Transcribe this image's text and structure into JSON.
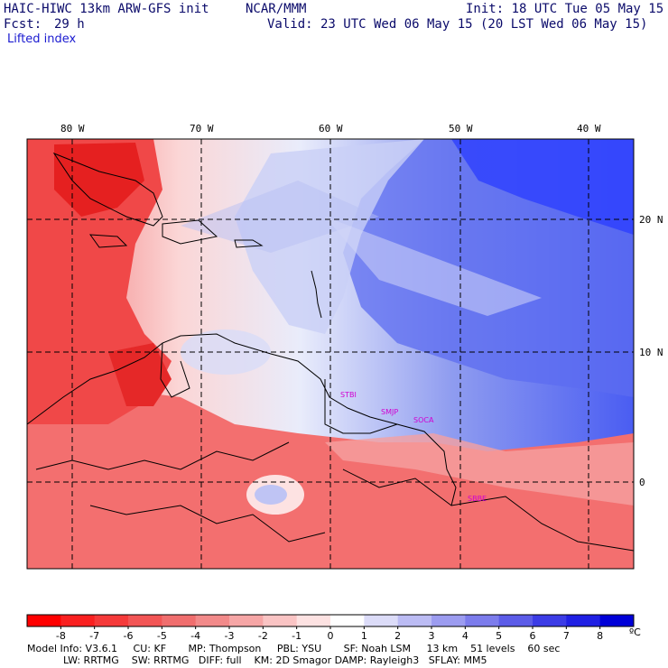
{
  "header": {
    "model_title": "HAIC-HIWC 13km ARW-GFS init",
    "org": "NCAR/MMM",
    "init": "Init: 18 UTC Tue 05 May 15",
    "fcst_label": "Fcst:",
    "fcst_value": "29 h",
    "valid": "Valid: 23 UTC Wed 06 May 15 (20 LST Wed 06 May 15)",
    "field": "Lifted index"
  },
  "map": {
    "lon_labels": [
      "80 W",
      "70 W",
      "60 W",
      "50 W",
      "40 W"
    ],
    "lat_labels": [
      "20 N",
      "10 N",
      "0"
    ],
    "cities": [
      "STBI",
      "SMJP",
      "SOCA",
      "SBBE"
    ],
    "colors": {
      "unstable": "#ff3a3a",
      "neutral": "#ffffff",
      "stable": "#2a3cff",
      "grid": "#000000",
      "city_marker": "#d000d0"
    }
  },
  "colorbar": {
    "levels": [
      "-8",
      "-7",
      "-6",
      "-5",
      "-4",
      "-3",
      "-2",
      "-1",
      "0",
      "1",
      "2",
      "3",
      "4",
      "5",
      "6",
      "7",
      "8"
    ],
    "unit": "ºC",
    "colors": [
      "#ff0000",
      "#fa2020",
      "#f53a3a",
      "#f25555",
      "#f06e6e",
      "#f28a8a",
      "#f6a6a6",
      "#fac4c4",
      "#fde2e2",
      "#ffffff",
      "#dcdcf8",
      "#bcbcf4",
      "#9c9cf0",
      "#7c7cec",
      "#5c5ce8",
      "#3c3ce6",
      "#2020e4",
      "#0000d8"
    ]
  },
  "footer": {
    "line1": "Model Info: V3.6.1     CU: KF       MP: Thompson     PBL: YSU       SF: Noah LSM     13 km    51 levels    60 sec",
    "line2": "LW: RRTMG    SW: RRTMG   DIFF: full    KM: 2D Smagor DAMP: Rayleigh3   SFLAY: MM5"
  }
}
